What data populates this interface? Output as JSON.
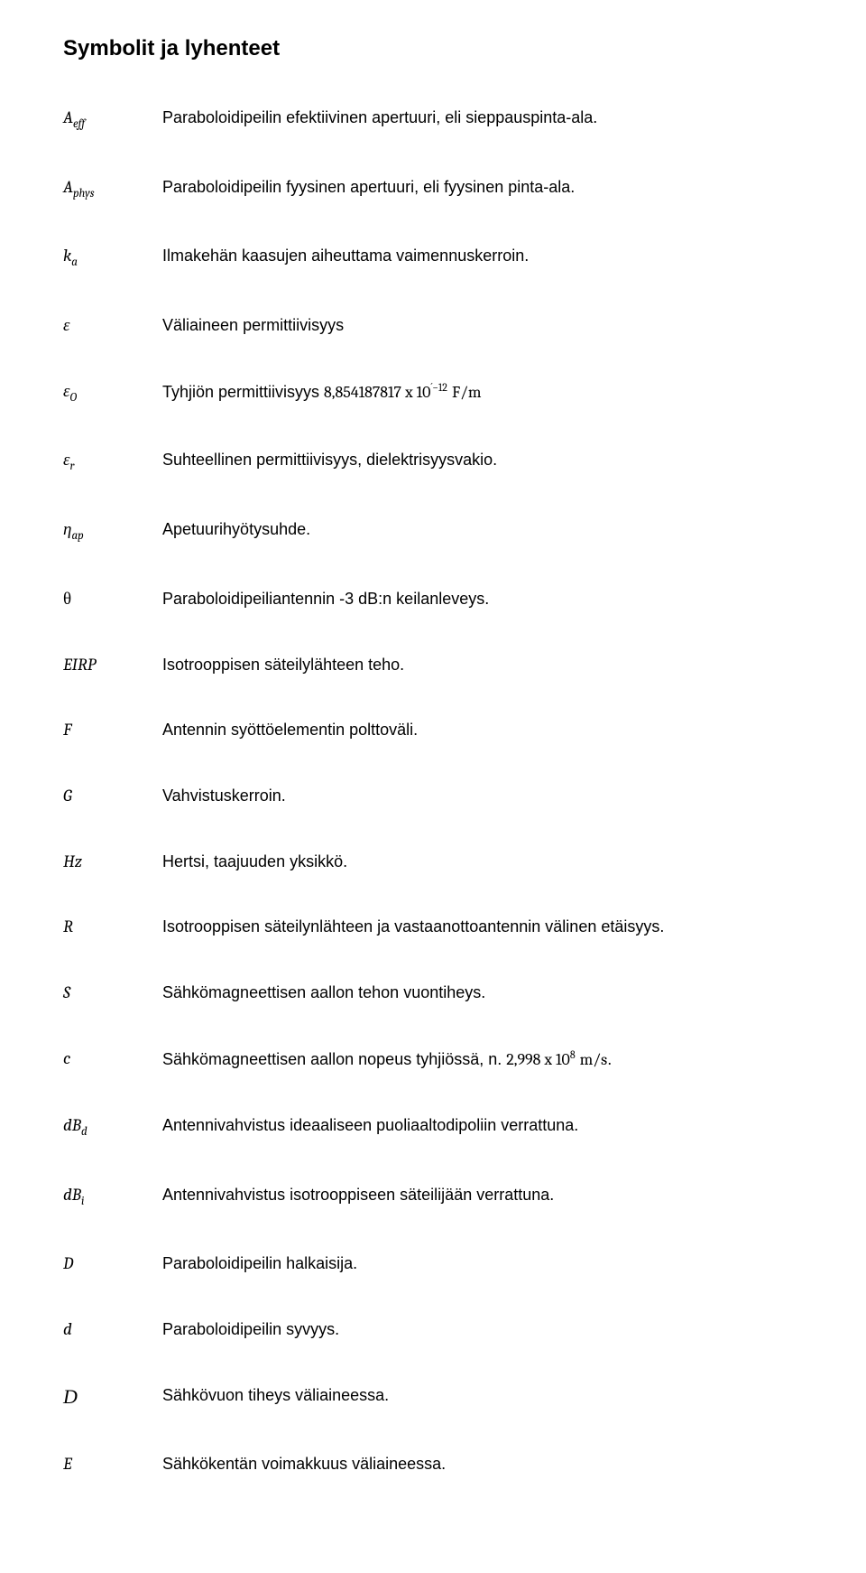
{
  "title": "Symbolit ja lyhenteet",
  "entries": [
    {
      "symbol_html": "<span class='mi'>A</span><span class='sub'>eff</span>",
      "desc_html": "Paraboloidipeilin efektiivinen apertuuri, eli sieppauspinta-ala."
    },
    {
      "symbol_html": "<span class='mi'>A</span><span class='sub'>phys</span>",
      "desc_html": "Paraboloidipeilin fyysinen apertuuri, eli fyysinen pinta-ala."
    },
    {
      "symbol_html": "<span class='mi'>k</span><span class='sub'>a</span>",
      "desc_html": "Ilmakehän kaasujen aiheuttama vaimennuskerroin."
    },
    {
      "symbol_html": "<span class='mi'>ε</span>",
      "desc_html": "Väliaineen permittiivisyys"
    },
    {
      "symbol_html": "<span class='mi'>ε</span><span class='sub'>O</span>",
      "desc_html": "Tyhjiön permittiivisyys <span class='math'>8,854187817 x 10</span><span class='sup'>´−12</span> <span class='math'>F/m</span>"
    },
    {
      "symbol_html": "<span class='mi'>ε</span><span class='sub'>r</span>",
      "desc_html": "Suhteellinen permittiivisyys, dielektrisyysvakio."
    },
    {
      "symbol_html": "<span class='mi'>η</span><span class='sub'>ap</span>",
      "desc_html": "Apetuurihyötysuhde."
    },
    {
      "symbol_html": "<span class='upright'>θ</span>",
      "desc_html": "Paraboloidipeiliantennin -3 dB:n keilanleveys."
    },
    {
      "symbol_html": "<span class='mi'>EIRP</span>",
      "desc_html": "Isotrooppisen säteilylähteen teho."
    },
    {
      "symbol_html": "<span class='mi'>F</span>",
      "desc_html": "Antennin syöttöelementin polttoväli."
    },
    {
      "symbol_html": "<span class='mi'>G</span>",
      "desc_html": "Vahvistuskerroin."
    },
    {
      "symbol_html": "<span class='mi'>Hz</span>",
      "desc_html": "Hertsi, taajuuden yksikkö."
    },
    {
      "symbol_html": "<span class='mi'>R</span>",
      "desc_html": "Isotrooppisen säteilynlähteen ja vastaanottoantennin välinen etäisyys."
    },
    {
      "symbol_html": "<span class='mi'>S</span>",
      "desc_html": "Sähkömagneettisen aallon tehon vuontiheys."
    },
    {
      "symbol_html": "<span class='mi'>c</span>",
      "desc_html": "Sähkömagneettisen aallon nopeus tyhjiössä, n. <span class='math'>2,998 x 10</span><span class='sup'>8</span> <span class='math'>m/s</span>."
    },
    {
      "symbol_html": "<span class='mi'>dB</span><span class='sub'>d</span>",
      "desc_html": "Antennivahvistus ideaaliseen puoliaaltodipoliin verrattuna."
    },
    {
      "symbol_html": "<span class='mi'>dB</span><span class='sub'>i</span>",
      "desc_html": "Antennivahvistus isotrooppiseen säteilijään verrattuna."
    },
    {
      "symbol_html": "<span class='mi'>D</span>",
      "desc_html": "Paraboloidipeilin halkaisija."
    },
    {
      "symbol_html": "<span class='mi'>d</span>",
      "desc_html": "Paraboloidipeilin syvyys."
    },
    {
      "symbol_html": "<span class='scr'>D</span>",
      "desc_html": "Sähkövuon tiheys väliaineessa."
    },
    {
      "symbol_html": "<span class='mi'>E</span>",
      "desc_html": "Sähkökentän voimakkuus väliaineessa."
    }
  ]
}
